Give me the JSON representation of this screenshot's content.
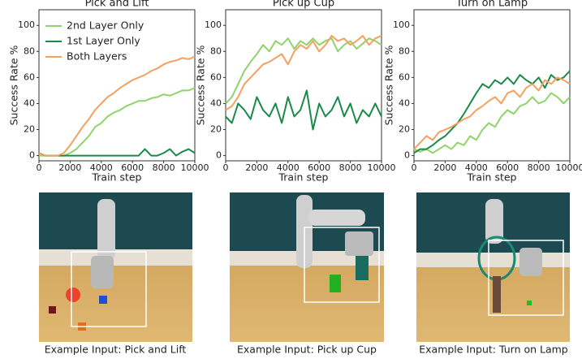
{
  "chart_data": [
    {
      "type": "line",
      "title": "Pick and Lift",
      "xlabel": "Train step",
      "ylabel": "Success Rate %",
      "legend": "upper left",
      "x": [
        0,
        400,
        800,
        1200,
        1600,
        2000,
        2400,
        2800,
        3200,
        3600,
        4000,
        4400,
        4800,
        5200,
        5600,
        6000,
        6400,
        6800,
        7200,
        7600,
        8000,
        8400,
        8800,
        9200,
        9600,
        10000
      ],
      "xlim": [
        0,
        10000
      ],
      "ylim": [
        -4,
        112
      ],
      "xticks": [
        0,
        2000,
        4000,
        6000,
        8000,
        10000
      ],
      "yticks": [
        0,
        20,
        40,
        60,
        80,
        100
      ],
      "series": [
        {
          "name": "2nd Layer Only",
          "color": "#8fd46a",
          "values": [
            0,
            0,
            0,
            0,
            0,
            2,
            5,
            10,
            15,
            22,
            25,
            30,
            33,
            35,
            38,
            40,
            42,
            42,
            44,
            45,
            47,
            46,
            48,
            50,
            50,
            52
          ]
        },
        {
          "name": "1st Layer Only",
          "color": "#1a8a4a",
          "values": [
            2,
            0,
            0,
            0,
            0,
            0,
            0,
            0,
            0,
            0,
            0,
            0,
            0,
            0,
            0,
            0,
            0,
            5,
            0,
            0,
            2,
            5,
            0,
            3,
            5,
            2
          ]
        },
        {
          "name": "Both Layers",
          "color": "#f4a060",
          "values": [
            2,
            0,
            0,
            0,
            2,
            8,
            15,
            22,
            28,
            35,
            40,
            45,
            48,
            52,
            55,
            58,
            60,
            62,
            65,
            67,
            70,
            72,
            73,
            75,
            74,
            76
          ]
        }
      ]
    },
    {
      "type": "line",
      "title": "Pick up Cup",
      "xlabel": "Train step",
      "ylabel": "Success Rate %",
      "x": [
        0,
        400,
        800,
        1200,
        1600,
        2000,
        2400,
        2800,
        3200,
        3600,
        4000,
        4400,
        4800,
        5200,
        5600,
        6000,
        6400,
        6800,
        7200,
        7600,
        8000,
        8400,
        8800,
        9200,
        9600,
        10000
      ],
      "xlim": [
        0,
        10000
      ],
      "ylim": [
        -4,
        112
      ],
      "xticks": [
        0,
        2000,
        4000,
        6000,
        8000,
        10000
      ],
      "yticks": [
        0,
        20,
        40,
        60,
        80,
        100
      ],
      "series": [
        {
          "name": "2nd Layer Only",
          "color": "#8fd46a",
          "values": [
            40,
            45,
            55,
            65,
            72,
            78,
            85,
            80,
            88,
            85,
            90,
            82,
            88,
            85,
            90,
            85,
            88,
            90,
            80,
            85,
            88,
            82,
            86,
            90,
            88,
            85
          ]
        },
        {
          "name": "1st Layer Only",
          "color": "#1a8a4a",
          "values": [
            30,
            25,
            40,
            35,
            28,
            45,
            35,
            30,
            40,
            25,
            45,
            30,
            35,
            50,
            20,
            40,
            30,
            35,
            45,
            30,
            40,
            25,
            35,
            30,
            40,
            30
          ]
        },
        {
          "name": "Both Layers",
          "color": "#f4a060",
          "values": [
            35,
            38,
            45,
            55,
            60,
            65,
            70,
            72,
            75,
            78,
            70,
            80,
            85,
            82,
            88,
            80,
            85,
            92,
            88,
            90,
            85,
            88,
            92,
            85,
            90,
            92
          ]
        }
      ]
    },
    {
      "type": "line",
      "title": "Turn on Lamp",
      "xlabel": "Train step",
      "ylabel": "Success Rate %",
      "x": [
        0,
        400,
        800,
        1200,
        1600,
        2000,
        2400,
        2800,
        3200,
        3600,
        4000,
        4400,
        4800,
        5200,
        5600,
        6000,
        6400,
        6800,
        7200,
        7600,
        8000,
        8400,
        8800,
        9200,
        9600,
        10000
      ],
      "xlim": [
        0,
        10000
      ],
      "ylim": [
        -4,
        112
      ],
      "xticks": [
        0,
        2000,
        4000,
        6000,
        8000,
        10000
      ],
      "yticks": [
        0,
        20,
        40,
        60,
        80,
        100
      ],
      "series": [
        {
          "name": "2nd Layer Only",
          "color": "#8fd46a",
          "values": [
            5,
            3,
            5,
            2,
            5,
            8,
            5,
            10,
            8,
            15,
            12,
            20,
            25,
            22,
            30,
            35,
            32,
            38,
            40,
            45,
            40,
            42,
            48,
            45,
            40,
            45
          ]
        },
        {
          "name": "1st Layer Only",
          "color": "#1a8a4a",
          "values": [
            2,
            5,
            5,
            8,
            12,
            15,
            20,
            25,
            32,
            40,
            48,
            55,
            52,
            58,
            55,
            60,
            55,
            62,
            58,
            55,
            60,
            52,
            62,
            58,
            60,
            65
          ]
        },
        {
          "name": "Both Layers",
          "color": "#f4a060",
          "values": [
            5,
            10,
            15,
            12,
            18,
            20,
            22,
            25,
            28,
            30,
            35,
            38,
            42,
            45,
            40,
            48,
            50,
            45,
            52,
            55,
            50,
            58,
            55,
            60,
            58,
            55
          ]
        }
      ]
    }
  ],
  "examples": [
    {
      "caption": "Example Input:  Pick and Lift"
    },
    {
      "caption": "Example Input:  Pick up Cup"
    },
    {
      "caption": "Example Input:  Turn on Lamp"
    }
  ]
}
